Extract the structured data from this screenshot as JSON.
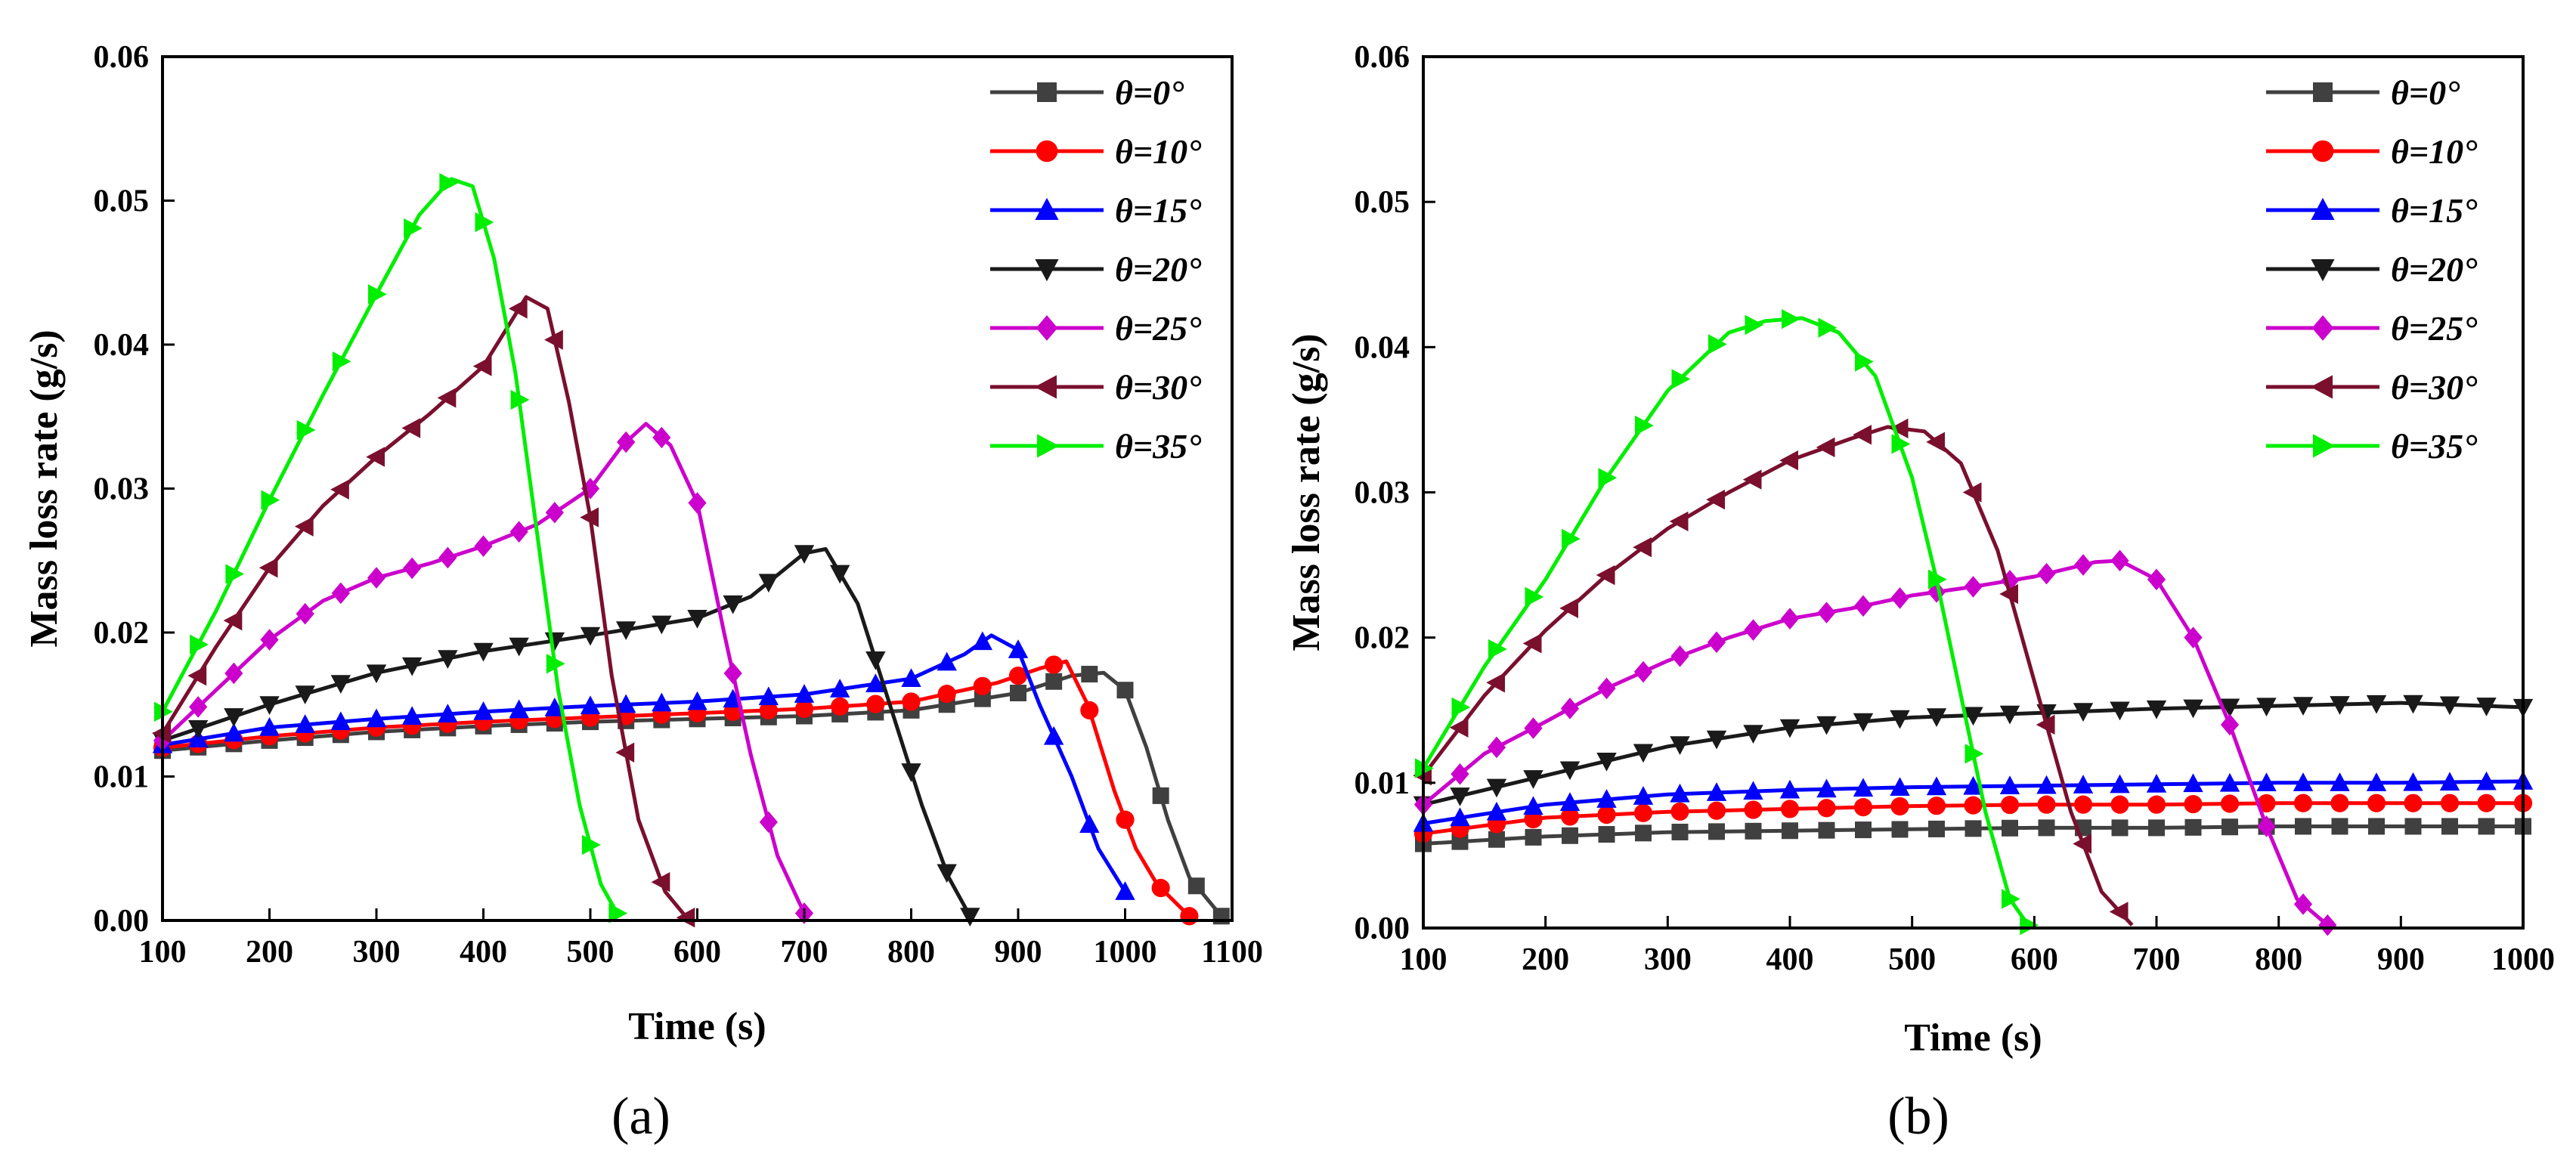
{
  "figure": {
    "panel_labels": [
      "(a)",
      "(b)"
    ]
  },
  "chart_data": [
    {
      "type": "line",
      "panel": "(a)",
      "xlabel": "Time (s)",
      "ylabel": "Mass loss rate (g/s)",
      "xlim": [
        100,
        1100
      ],
      "ylim": [
        0,
        0.06
      ],
      "xticks": [
        100,
        200,
        300,
        400,
        500,
        600,
        700,
        800,
        900,
        1000,
        1100
      ],
      "xtick_labels": [
        "100",
        "200",
        "300",
        "400",
        "500",
        "600",
        "700",
        "800",
        "900",
        "1000",
        "1100"
      ],
      "yticks": [
        0,
        0.01,
        0.02,
        0.03,
        0.04,
        0.05,
        0.06
      ],
      "ytick_labels": [
        "0.00",
        "0.01",
        "0.02",
        "0.03",
        "0.04",
        "0.05",
        "0.06"
      ],
      "legend_position": "top-right",
      "series": [
        {
          "name": "θ=0°",
          "color": "#404040",
          "marker": "square",
          "points": [
            [
              100,
              0.0118
            ],
            [
              200,
              0.0125
            ],
            [
              300,
              0.0131
            ],
            [
              400,
              0.0135
            ],
            [
              500,
              0.0138
            ],
            [
              600,
              0.014
            ],
            [
              700,
              0.0142
            ],
            [
              800,
              0.0146
            ],
            [
              900,
              0.0158
            ],
            [
              950,
              0.017
            ],
            [
              980,
              0.0172
            ],
            [
              1000,
              0.016
            ],
            [
              1020,
              0.012
            ],
            [
              1040,
              0.007
            ],
            [
              1060,
              0.003
            ],
            [
              1090,
              0.0003
            ]
          ]
        },
        {
          "name": "θ=10°",
          "color": "#ff0000",
          "marker": "circle",
          "points": [
            [
              100,
              0.012
            ],
            [
              200,
              0.0128
            ],
            [
              300,
              0.0134
            ],
            [
              400,
              0.0138
            ],
            [
              500,
              0.0141
            ],
            [
              600,
              0.0144
            ],
            [
              700,
              0.0147
            ],
            [
              800,
              0.0152
            ],
            [
              880,
              0.0165
            ],
            [
              920,
              0.0175
            ],
            [
              945,
              0.018
            ],
            [
              965,
              0.015
            ],
            [
              990,
              0.009
            ],
            [
              1010,
              0.005
            ],
            [
              1030,
              0.0025
            ],
            [
              1060,
              0.0003
            ]
          ]
        },
        {
          "name": "θ=15°",
          "color": "#0000ff",
          "marker": "triangle-up",
          "points": [
            [
              100,
              0.0122
            ],
            [
              200,
              0.0134
            ],
            [
              300,
              0.014
            ],
            [
              400,
              0.0145
            ],
            [
              500,
              0.0149
            ],
            [
              600,
              0.0152
            ],
            [
              700,
              0.0157
            ],
            [
              800,
              0.0168
            ],
            [
              850,
              0.0185
            ],
            [
              875,
              0.0198
            ],
            [
              900,
              0.0188
            ],
            [
              920,
              0.015
            ],
            [
              950,
              0.01
            ],
            [
              975,
              0.005
            ],
            [
              1000,
              0.002
            ]
          ]
        },
        {
          "name": "θ=20°",
          "color": "#1a1a1a",
          "marker": "triangle-down",
          "points": [
            [
              100,
              0.0125
            ],
            [
              200,
              0.015
            ],
            [
              300,
              0.0172
            ],
            [
              400,
              0.0187
            ],
            [
              500,
              0.0198
            ],
            [
              600,
              0.021
            ],
            [
              650,
              0.0225
            ],
            [
              700,
              0.0255
            ],
            [
              720,
              0.0258
            ],
            [
              750,
              0.022
            ],
            [
              780,
              0.015
            ],
            [
              810,
              0.008
            ],
            [
              835,
              0.003
            ],
            [
              855,
              0.0003
            ]
          ]
        },
        {
          "name": "θ=25°",
          "color": "#cc00cc",
          "marker": "diamond",
          "points": [
            [
              100,
              0.0125
            ],
            [
              150,
              0.016
            ],
            [
              200,
              0.0195
            ],
            [
              250,
              0.0222
            ],
            [
              300,
              0.0238
            ],
            [
              350,
              0.0248
            ],
            [
              400,
              0.026
            ],
            [
              450,
              0.0275
            ],
            [
              500,
              0.03
            ],
            [
              530,
              0.033
            ],
            [
              552,
              0.0345
            ],
            [
              575,
              0.033
            ],
            [
              600,
              0.029
            ],
            [
              625,
              0.02
            ],
            [
              650,
              0.0115
            ],
            [
              675,
              0.0045
            ],
            [
              700,
              0.0005
            ]
          ]
        },
        {
          "name": "θ=30°",
          "color": "#7a0f2e",
          "marker": "triangle-left",
          "points": [
            [
              100,
              0.013
            ],
            [
              150,
              0.019
            ],
            [
              200,
              0.0245
            ],
            [
              250,
              0.0288
            ],
            [
              300,
              0.0322
            ],
            [
              350,
              0.0352
            ],
            [
              400,
              0.0385
            ],
            [
              425,
              0.0415
            ],
            [
              440,
              0.0433
            ],
            [
              460,
              0.0425
            ],
            [
              480,
              0.036
            ],
            [
              500,
              0.028
            ],
            [
              520,
              0.017
            ],
            [
              545,
              0.007
            ],
            [
              570,
              0.002
            ],
            [
              590,
              0.0002
            ]
          ]
        },
        {
          "name": "θ=35°",
          "color": "#00ee00",
          "marker": "triangle-right",
          "points": [
            [
              100,
              0.0145
            ],
            [
              150,
              0.0215
            ],
            [
              200,
              0.0292
            ],
            [
              250,
              0.0365
            ],
            [
              300,
              0.0435
            ],
            [
              340,
              0.049
            ],
            [
              370,
              0.0515
            ],
            [
              390,
              0.051
            ],
            [
              410,
              0.046
            ],
            [
              430,
              0.038
            ],
            [
              450,
              0.027
            ],
            [
              470,
              0.016
            ],
            [
              490,
              0.008
            ],
            [
              510,
              0.0025
            ],
            [
              525,
              0.0005
            ]
          ]
        }
      ]
    },
    {
      "type": "line",
      "panel": "(b)",
      "xlabel": "Time (s)",
      "ylabel": "Mass loss rate (g/s)",
      "xlim": [
        100,
        1000
      ],
      "ylim": [
        0,
        0.06
      ],
      "xticks": [
        100,
        200,
        300,
        400,
        500,
        600,
        700,
        800,
        900,
        1000
      ],
      "xtick_labels": [
        "100",
        "200",
        "300",
        "400",
        "500",
        "600",
        "700",
        "800",
        "900",
        "1000"
      ],
      "yticks": [
        0,
        0.01,
        0.02,
        0.03,
        0.04,
        0.05,
        0.06
      ],
      "ytick_labels": [
        "0.00",
        "0.01",
        "0.02",
        "0.03",
        "0.04",
        "0.05",
        "0.06"
      ],
      "legend_position": "top-right",
      "series": [
        {
          "name": "θ=0°",
          "color": "#404040",
          "marker": "square",
          "points": [
            [
              100,
              0.0058
            ],
            [
              200,
              0.0063
            ],
            [
              300,
              0.0066
            ],
            [
              400,
              0.0067
            ],
            [
              500,
              0.0068
            ],
            [
              600,
              0.0069
            ],
            [
              700,
              0.0069
            ],
            [
              800,
              0.007
            ],
            [
              900,
              0.007
            ],
            [
              1000,
              0.007
            ]
          ]
        },
        {
          "name": "θ=10°",
          "color": "#ff0000",
          "marker": "circle",
          "points": [
            [
              100,
              0.0065
            ],
            [
              200,
              0.0076
            ],
            [
              300,
              0.008
            ],
            [
              400,
              0.0082
            ],
            [
              500,
              0.0084
            ],
            [
              600,
              0.0085
            ],
            [
              700,
              0.0085
            ],
            [
              800,
              0.0086
            ],
            [
              900,
              0.0086
            ],
            [
              1000,
              0.0086
            ]
          ]
        },
        {
          "name": "θ=15°",
          "color": "#0000ff",
          "marker": "triangle-up",
          "points": [
            [
              100,
              0.0072
            ],
            [
              200,
              0.0085
            ],
            [
              300,
              0.0092
            ],
            [
              400,
              0.0095
            ],
            [
              500,
              0.0097
            ],
            [
              600,
              0.0098
            ],
            [
              700,
              0.0099
            ],
            [
              800,
              0.01
            ],
            [
              900,
              0.01
            ],
            [
              1000,
              0.0101
            ]
          ]
        },
        {
          "name": "θ=20°",
          "color": "#1a1a1a",
          "marker": "triangle-down",
          "points": [
            [
              100,
              0.0085
            ],
            [
              200,
              0.0105
            ],
            [
              300,
              0.0125
            ],
            [
              400,
              0.0138
            ],
            [
              500,
              0.0145
            ],
            [
              600,
              0.0148
            ],
            [
              700,
              0.0151
            ],
            [
              800,
              0.0153
            ],
            [
              900,
              0.0155
            ],
            [
              1000,
              0.0152
            ]
          ]
        },
        {
          "name": "θ=25°",
          "color": "#cc00cc",
          "marker": "diamond",
          "points": [
            [
              100,
              0.0085
            ],
            [
              150,
              0.012
            ],
            [
              200,
              0.0142
            ],
            [
              250,
              0.0165
            ],
            [
              300,
              0.0184
            ],
            [
              350,
              0.02
            ],
            [
              400,
              0.0213
            ],
            [
              450,
              0.022
            ],
            [
              500,
              0.0229
            ],
            [
              550,
              0.0235
            ],
            [
              600,
              0.0242
            ],
            [
              650,
              0.0252
            ],
            [
              670,
              0.0253
            ],
            [
              700,
              0.024
            ],
            [
              730,
              0.02
            ],
            [
              760,
              0.014
            ],
            [
              790,
              0.007
            ],
            [
              815,
              0.002
            ],
            [
              840,
              0.0002
            ]
          ]
        },
        {
          "name": "θ=30°",
          "color": "#7a0f2e",
          "marker": "triangle-left",
          "points": [
            [
              100,
              0.0105
            ],
            [
              150,
              0.016
            ],
            [
              200,
              0.0205
            ],
            [
              250,
              0.0243
            ],
            [
              300,
              0.0275
            ],
            [
              350,
              0.03
            ],
            [
              400,
              0.0322
            ],
            [
              450,
              0.0337
            ],
            [
              480,
              0.0345
            ],
            [
              510,
              0.0342
            ],
            [
              540,
              0.032
            ],
            [
              570,
              0.026
            ],
            [
              600,
              0.017
            ],
            [
              630,
              0.008
            ],
            [
              655,
              0.0025
            ],
            [
              680,
              0.0002
            ]
          ]
        },
        {
          "name": "θ=35°",
          "color": "#00ee00",
          "marker": "triangle-right",
          "points": [
            [
              100,
              0.011
            ],
            [
              150,
              0.018
            ],
            [
              200,
              0.024
            ],
            [
              250,
              0.031
            ],
            [
              300,
              0.037
            ],
            [
              350,
              0.041
            ],
            [
              380,
              0.0418
            ],
            [
              410,
              0.042
            ],
            [
              440,
              0.041
            ],
            [
              470,
              0.038
            ],
            [
              500,
              0.031
            ],
            [
              520,
              0.024
            ],
            [
              540,
              0.016
            ],
            [
              560,
              0.008
            ],
            [
              580,
              0.002
            ],
            [
              595,
              0.0002
            ]
          ]
        }
      ]
    }
  ]
}
